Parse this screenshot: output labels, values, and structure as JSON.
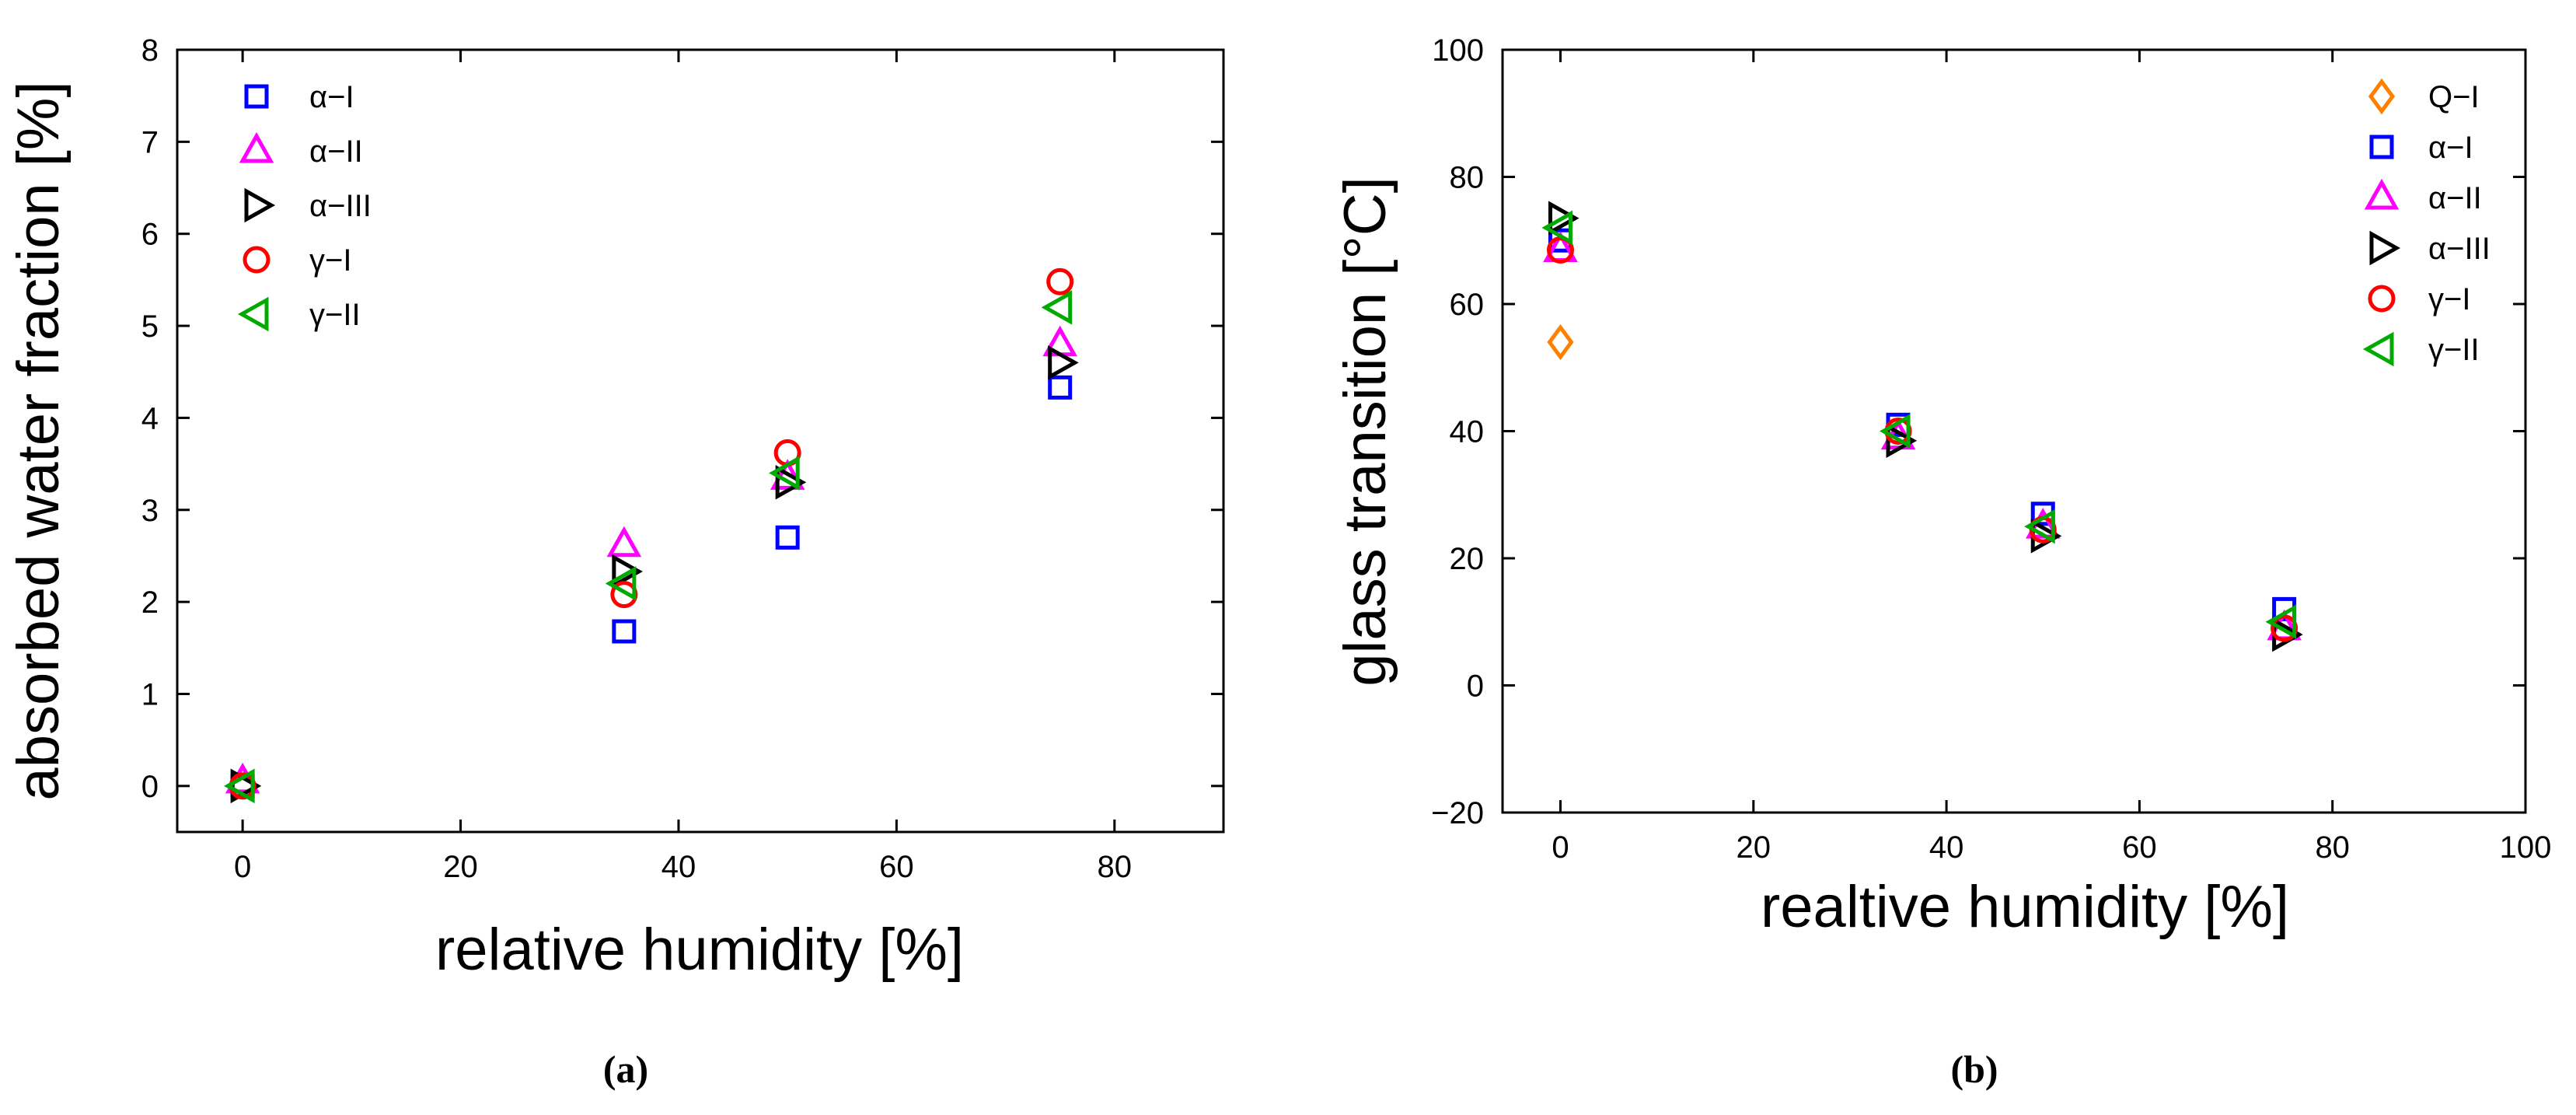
{
  "chart_data": [
    {
      "type": "scatter",
      "xlabel": "relative humidity [%]",
      "ylabel": "absorbed water fraction [%]",
      "caption": "(a)",
      "xlim": [
        -6,
        90
      ],
      "ylim": [
        -0.5,
        8
      ],
      "xticks": [
        0,
        20,
        40,
        60,
        80
      ],
      "yticks": [
        0,
        1,
        2,
        3,
        4,
        5,
        6,
        7,
        8
      ],
      "legend_position": "top-left",
      "series": [
        {
          "name": "α−I",
          "marker": "square",
          "color": "#0000ff",
          "x": [
            0,
            35,
            50,
            75
          ],
          "y": [
            0,
            1.68,
            2.7,
            4.33
          ]
        },
        {
          "name": "α−II",
          "marker": "triangle-up",
          "color": "#ff00ff",
          "x": [
            0,
            35,
            50,
            75
          ],
          "y": [
            0.05,
            2.62,
            3.35,
            4.8
          ]
        },
        {
          "name": "α−III",
          "marker": "triangle-right",
          "color": "#000000",
          "x": [
            0,
            35,
            50,
            75
          ],
          "y": [
            0,
            2.33,
            3.3,
            4.6
          ]
        },
        {
          "name": "γ−I",
          "marker": "circle",
          "color": "#ff0000",
          "x": [
            0,
            35,
            50,
            75
          ],
          "y": [
            0,
            2.08,
            3.62,
            5.48
          ]
        },
        {
          "name": "γ−II",
          "marker": "triangle-left",
          "color": "#00aa00",
          "x": [
            0,
            35,
            50,
            75
          ],
          "y": [
            0,
            2.2,
            3.4,
            5.2
          ]
        }
      ]
    },
    {
      "type": "scatter",
      "xlabel": "realtive humidity [%]",
      "ylabel": "glass transition [°C]",
      "caption": "(b)",
      "xlim": [
        -6,
        100
      ],
      "ylim": [
        -20,
        100
      ],
      "xticks": [
        0,
        20,
        40,
        60,
        80,
        100
      ],
      "yticks": [
        -20,
        0,
        20,
        40,
        60,
        80,
        100
      ],
      "legend_position": "top-right",
      "series": [
        {
          "name": "Q−I",
          "marker": "diamond",
          "color": "#ff8000",
          "x": [
            0
          ],
          "y": [
            54
          ]
        },
        {
          "name": "α−I",
          "marker": "square",
          "color": "#0000ff",
          "x": [
            0,
            35,
            50,
            75
          ],
          "y": [
            70,
            41,
            27,
            12
          ]
        },
        {
          "name": "α−II",
          "marker": "triangle-up",
          "color": "#ff00ff",
          "x": [
            0,
            35,
            50,
            75
          ],
          "y": [
            68.5,
            39,
            25,
            9
          ]
        },
        {
          "name": "α−III",
          "marker": "triangle-right",
          "color": "#000000",
          "x": [
            0,
            35,
            50,
            75
          ],
          "y": [
            73.5,
            38.5,
            23.5,
            8
          ]
        },
        {
          "name": "γ−I",
          "marker": "circle",
          "color": "#ff0000",
          "x": [
            0,
            35,
            50,
            75
          ],
          "y": [
            68.5,
            40,
            24.5,
            9
          ]
        },
        {
          "name": "γ−II",
          "marker": "triangle-left",
          "color": "#00aa00",
          "x": [
            0,
            35,
            50,
            75
          ],
          "y": [
            72,
            40,
            25,
            10
          ]
        }
      ]
    }
  ]
}
